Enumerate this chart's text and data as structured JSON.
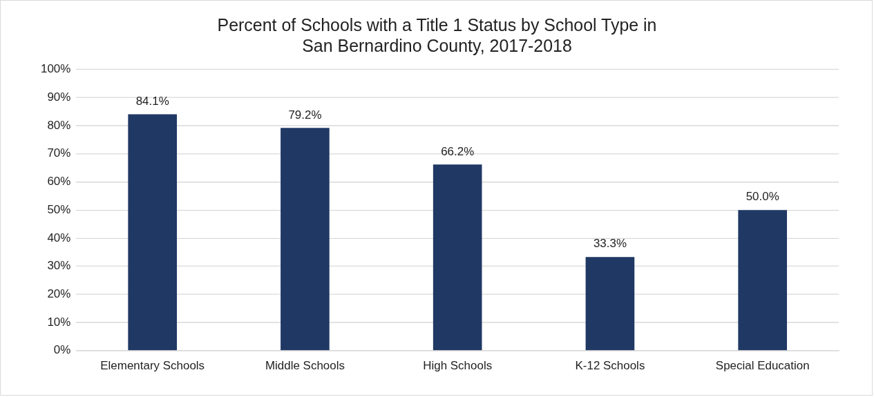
{
  "chart_data": {
    "type": "bar",
    "title": "Percent of Schools with a Title 1 Status by School Type in\nSan Bernardino County, 2017-2018",
    "categories": [
      "Elementary Schools",
      "Middle Schools",
      "High Schools",
      "K-12 Schools",
      "Special Education"
    ],
    "values": [
      84.1,
      79.2,
      66.2,
      33.3,
      50.0
    ],
    "value_labels": [
      "84.1%",
      "79.2%",
      "66.2%",
      "33.3%",
      "50.0%"
    ],
    "color": "#203864",
    "ylim": [
      0,
      100
    ],
    "yticks": [
      {
        "value": 0,
        "label": "0%"
      },
      {
        "value": 10,
        "label": "10%"
      },
      {
        "value": 20,
        "label": "20%"
      },
      {
        "value": 30,
        "label": "30%"
      },
      {
        "value": 40,
        "label": "40%"
      },
      {
        "value": 50,
        "label": "50%"
      },
      {
        "value": 60,
        "label": "60%"
      },
      {
        "value": 70,
        "label": "70%"
      },
      {
        "value": 80,
        "label": "80%"
      },
      {
        "value": 90,
        "label": "90%"
      },
      {
        "value": 100,
        "label": "100%"
      }
    ],
    "grid": "y",
    "legend": false
  }
}
